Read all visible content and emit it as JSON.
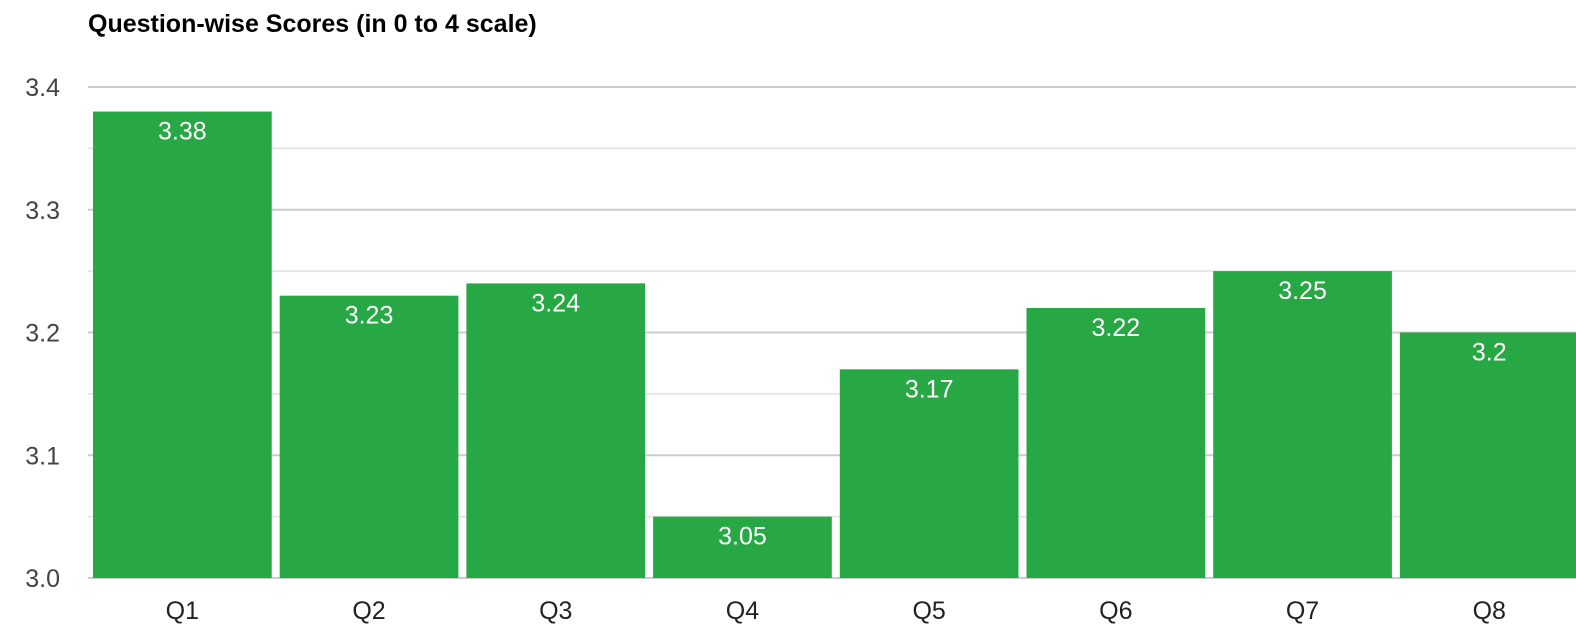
{
  "chart_data": {
    "type": "bar",
    "title": "Question-wise Scores (in 0 to 4 scale)",
    "xlabel": "",
    "ylabel": "",
    "categories": [
      "Q1",
      "Q2",
      "Q3",
      "Q4",
      "Q5",
      "Q6",
      "Q7",
      "Q8"
    ],
    "values": [
      3.38,
      3.23,
      3.24,
      3.05,
      3.17,
      3.22,
      3.25,
      3.2
    ],
    "data_labels": [
      "3.38",
      "3.23",
      "3.24",
      "3.05",
      "3.17",
      "3.22",
      "3.25",
      "3.2"
    ],
    "ylim": [
      3.0,
      3.4
    ],
    "yticks": [
      "3.0",
      "3.1",
      "3.2",
      "3.3",
      "3.4"
    ],
    "grid": true,
    "legend": "none",
    "colors": {
      "bar": "#28a745",
      "major_grid": "#cccccc",
      "minor_grid": "#e6e6e6",
      "data_label": "#ffffff"
    }
  }
}
